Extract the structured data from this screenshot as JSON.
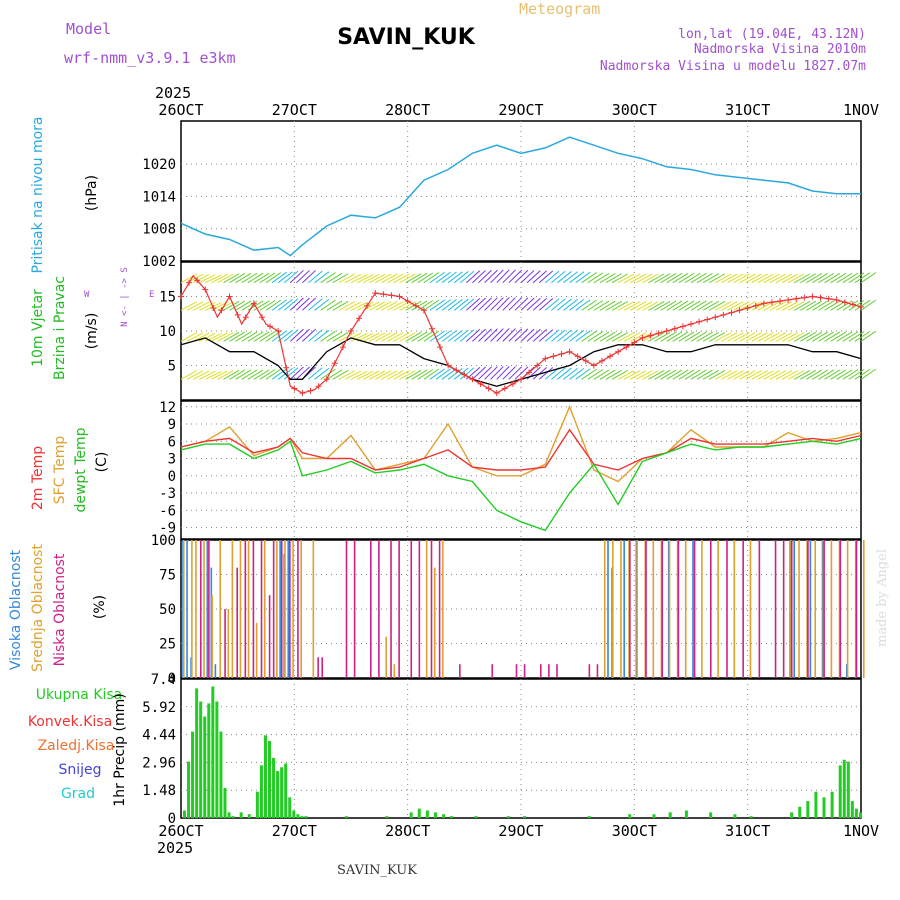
{
  "header": {
    "model_label": "Model",
    "model_name": "wrf-nmm_v3.9.1  e3km",
    "station": "SAVIN_KUK",
    "meteogram": "Meteogram",
    "lonlat": "lon,lat (19.04E, 43.12N)",
    "altitude": "Nadmorska Visina 2010m",
    "model_altitude": "Nadmorska Visina u modelu 1827.07m",
    "footer_station": "SAVIN_KUK",
    "credit": "made by Angel"
  },
  "colors": {
    "pressure": "#29a8e0",
    "wind_title": "#22bb22",
    "t2m": "#ee3333",
    "sfc": "#e0a030",
    "dew": "#22cc22",
    "high_cloud": "#3388dd",
    "mid_cloud": "#e0a030",
    "low_cloud": "#cc2288",
    "precip": "#22cc22",
    "purple": "#a050d0",
    "grid": "#888888"
  },
  "chart_data": [
    {
      "type": "line",
      "id": "pressure",
      "ylabel": "Pritisak na nivou mora",
      "unit": "(hPa)",
      "ylim": [
        1002,
        1028
      ],
      "yticks": [
        1002,
        1008,
        1014,
        1020
      ],
      "x_top_ticks": [
        "26OCT",
        "27OCT",
        "28OCT",
        "29OCT",
        "30OCT",
        "31OCT",
        "1NOV"
      ],
      "x_top_year": "2025",
      "x": [
        0,
        6,
        12,
        18,
        24,
        27,
        30,
        36,
        42,
        48,
        54,
        60,
        66,
        72,
        78,
        84,
        90,
        96,
        102,
        108,
        114,
        120,
        126,
        132,
        138,
        144,
        150,
        156,
        162,
        168
      ],
      "values": [
        1009,
        1007,
        1006,
        1004,
        1004.5,
        1003,
        1005,
        1008.5,
        1010.5,
        1010,
        1012,
        1017,
        1019,
        1022,
        1023.5,
        1022,
        1023,
        1025,
        1023.5,
        1022,
        1021,
        1019.5,
        1019,
        1018,
        1017.5,
        1017,
        1016.5,
        1015,
        1014.5,
        1014.5
      ]
    },
    {
      "type": "line",
      "id": "wind",
      "ylabel": "10m Vjetar",
      "ylabel2": "Brzina i Pravac",
      "unit": "(m/s)",
      "compass": [
        "W",
        "<-",
        "|",
        "->",
        "E"
      ],
      "compass2": [
        "N",
        "S"
      ],
      "ylim": [
        0,
        20
      ],
      "yticks": [
        5,
        10,
        15
      ],
      "series": [
        {
          "name": "Brzina",
          "x": [
            0,
            6,
            12,
            18,
            24,
            27,
            30,
            36,
            42,
            48,
            54,
            60,
            66,
            72,
            78,
            84,
            90,
            96,
            102,
            108,
            114,
            120,
            126,
            132,
            138,
            144,
            150,
            156,
            162,
            168
          ],
          "values": [
            8,
            9,
            7,
            7,
            5,
            3,
            3,
            7,
            9,
            8,
            8,
            6,
            5,
            3,
            2,
            3,
            4,
            5,
            7,
            8,
            8,
            7,
            7,
            8,
            8,
            8,
            8,
            7,
            7,
            6
          ]
        },
        {
          "name": "Udari",
          "x": [
            0,
            3,
            6,
            9,
            12,
            15,
            18,
            21,
            24,
            27,
            30,
            33,
            36,
            42,
            48,
            54,
            60,
            66,
            72,
            78,
            84,
            90,
            96,
            102,
            108,
            114,
            120,
            126,
            132,
            138,
            144,
            150,
            156,
            162,
            168
          ],
          "values": [
            15,
            18,
            16,
            12,
            15,
            11,
            14,
            11,
            10,
            2,
            1,
            1.5,
            3,
            10,
            15.5,
            15,
            13,
            5,
            3,
            1,
            3,
            6,
            7,
            5,
            7,
            9,
            10,
            11,
            12,
            13,
            14,
            14.5,
            15,
            14.5,
            13.5
          ]
        }
      ]
    },
    {
      "type": "line",
      "id": "temperature",
      "ylabels": [
        "2m Temp",
        "SFC Temp",
        "dewpt Temp"
      ],
      "unit": "(C)",
      "ylim": [
        -11,
        13
      ],
      "yticks": [
        -9,
        -6,
        -3,
        0,
        3,
        6,
        9,
        12
      ],
      "x": [
        0,
        6,
        12,
        18,
        24,
        27,
        30,
        36,
        42,
        48,
        54,
        60,
        66,
        72,
        78,
        84,
        90,
        96,
        102,
        108,
        114,
        120,
        126,
        132,
        138,
        144,
        150,
        156,
        162,
        168
      ],
      "series": [
        {
          "name": "2m Temp",
          "values": [
            5,
            6,
            6.5,
            4,
            5,
            6.5,
            4,
            3,
            3,
            1,
            1.5,
            3,
            4.5,
            1.5,
            1,
            1,
            1.5,
            8,
            2,
            1,
            3,
            4,
            6.5,
            5.5,
            5.5,
            5.5,
            6,
            6.5,
            6,
            7
          ]
        },
        {
          "name": "SFC Temp",
          "values": [
            5,
            6,
            8.5,
            3.5,
            5,
            6.5,
            3,
            3,
            7,
            1,
            2,
            3,
            9,
            1.5,
            0,
            0,
            2,
            12,
            1,
            -1,
            3,
            4,
            8,
            5,
            5,
            5,
            7.5,
            6,
            6.5,
            7.5
          ]
        },
        {
          "name": "dewpt Temp",
          "values": [
            4.5,
            5.5,
            5.5,
            3,
            4.5,
            6,
            0,
            1,
            2.5,
            0.5,
            1,
            2,
            0,
            -1,
            -6,
            -8,
            -9.5,
            -3,
            2,
            -5,
            2.5,
            4,
            5.5,
            4.5,
            5,
            5,
            5.5,
            6,
            5.5,
            6.5
          ]
        }
      ]
    },
    {
      "type": "bar",
      "id": "clouds",
      "ylabels": [
        "Visoka Oblacnost",
        "Srednja Oblacnost",
        "Niska Oblacnost"
      ],
      "unit": "(%)",
      "ylim": [
        0,
        100
      ],
      "yticks": [
        0,
        25,
        50,
        75,
        100
      ],
      "series": [
        {
          "name": "Visoka Oblacnost",
          "x": [
            0,
            1,
            2,
            6,
            7,
            8,
            24,
            25,
            26,
            105,
            106,
            109,
            112,
            120,
            126,
            150,
            151,
            155,
            158,
            164
          ],
          "values": [
            100,
            100,
            15,
            100,
            80,
            10,
            100,
            90,
            100,
            100,
            80,
            100,
            100,
            100,
            100,
            100,
            100,
            100,
            100,
            10
          ]
        },
        {
          "name": "Srednja Oblacnost",
          "x": [
            0,
            2,
            3,
            5,
            7,
            9,
            11,
            12,
            14,
            16,
            18,
            20,
            23,
            25,
            27,
            29,
            32,
            50,
            52,
            60,
            62,
            64,
            104,
            106,
            108,
            110,
            112,
            114,
            116,
            118,
            120,
            122,
            124,
            128,
            132,
            136,
            140,
            150,
            152,
            154,
            156,
            158,
            160,
            162,
            164,
            166,
            168
          ],
          "values": [
            100,
            100,
            100,
            100,
            60,
            100,
            50,
            100,
            100,
            100,
            40,
            100,
            100,
            100,
            100,
            100,
            100,
            30,
            10,
            100,
            80,
            100,
            100,
            100,
            100,
            100,
            100,
            100,
            100,
            100,
            100,
            100,
            100,
            100,
            100,
            100,
            100,
            100,
            100,
            100,
            100,
            100,
            100,
            100,
            100,
            100,
            100
          ]
        },
        {
          "name": "Niska Oblacnost",
          "x": [
            4,
            6,
            10,
            13,
            15,
            17,
            19,
            21,
            22,
            24,
            26,
            28,
            33,
            34,
            40,
            42,
            46,
            48,
            51,
            53,
            56,
            58,
            61,
            63,
            68,
            76,
            82,
            84,
            88,
            90,
            92,
            100,
            102,
            110,
            114,
            118,
            122,
            126,
            130,
            134,
            138,
            142,
            146,
            148,
            150,
            154,
            158,
            162,
            166
          ],
          "values": [
            100,
            100,
            50,
            80,
            100,
            100,
            100,
            60,
            100,
            100,
            100,
            100,
            15,
            15,
            100,
            100,
            100,
            100,
            100,
            100,
            100,
            100,
            100,
            100,
            10,
            10,
            10,
            10,
            10,
            10,
            10,
            10,
            10,
            100,
            100,
            100,
            100,
            100,
            100,
            100,
            100,
            100,
            100,
            100,
            100,
            100,
            100,
            100,
            100
          ]
        }
      ]
    },
    {
      "type": "bar",
      "id": "precip",
      "ylabels": [
        "Ukupna Kisa",
        "Konvek.Kisa",
        "Zaledj.Kisa",
        "Snijeg",
        "Grad"
      ],
      "ylabel_legend_colors": [
        "#22cc22",
        "#ee3333",
        "#f07030",
        "#4444dd",
        "#22cccc"
      ],
      "unit": "1hr Precip (mm)",
      "ylim": [
        0,
        7.4
      ],
      "yticks": [
        "0",
        "1.48",
        "2.96",
        "4.44",
        "5.92",
        "7.4"
      ],
      "x_bottom_ticks": [
        "26OCT",
        "27OCT",
        "28OCT",
        "29OCT",
        "30OCT",
        "31OCT",
        "1NOV"
      ],
      "x_bottom_year": "2025",
      "x": [
        0,
        1,
        2,
        3,
        4,
        5,
        6,
        7,
        8,
        9,
        10,
        11,
        12,
        14,
        16,
        18,
        19,
        20,
        21,
        22,
        23,
        24,
        25,
        26,
        27,
        28,
        29,
        30,
        40,
        50,
        56,
        58,
        60,
        62,
        64,
        66,
        72,
        80,
        84,
        100,
        110,
        116,
        120,
        124,
        130,
        136,
        140,
        150,
        152,
        154,
        156,
        158,
        160,
        162,
        163,
        164,
        165,
        166,
        167
      ],
      "values": [
        0.4,
        3.0,
        4.6,
        6.9,
        6.2,
        5.4,
        6.1,
        7.0,
        6.2,
        4.6,
        1.6,
        0.3,
        0.1,
        0.3,
        0.2,
        1.4,
        2.8,
        4.4,
        4.1,
        3.2,
        2.5,
        2.7,
        2.9,
        1.1,
        0.4,
        0.2,
        0.1,
        0.1,
        0.1,
        0.1,
        0.3,
        0.5,
        0.4,
        0.3,
        0.2,
        0.1,
        0.1,
        0.1,
        0.1,
        0.1,
        0.2,
        0.2,
        0.3,
        0.4,
        0.3,
        0.2,
        0.1,
        0.3,
        0.6,
        0.9,
        1.4,
        1.1,
        1.4,
        2.8,
        3.1,
        3.0,
        0.9,
        0.5,
        0.3
      ]
    }
  ]
}
